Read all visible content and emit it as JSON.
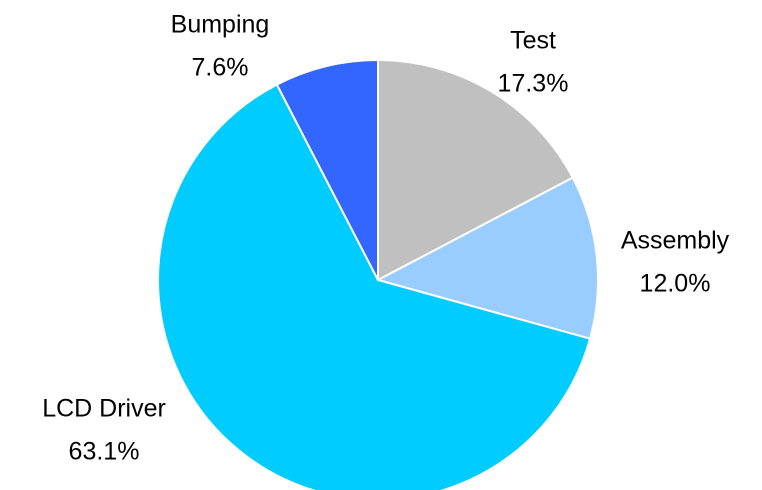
{
  "chart_data": {
    "type": "pie",
    "categories": [
      "Test",
      "Assembly",
      "LCD Driver",
      "Bumping"
    ],
    "values": [
      17.3,
      12.0,
      63.1,
      7.6
    ],
    "value_labels": [
      "17.3%",
      "12.0%",
      "63.1%",
      "7.6%"
    ],
    "colors": [
      "#c0c0c0",
      "#99ccff",
      "#00ccff",
      "#3366ff"
    ]
  }
}
